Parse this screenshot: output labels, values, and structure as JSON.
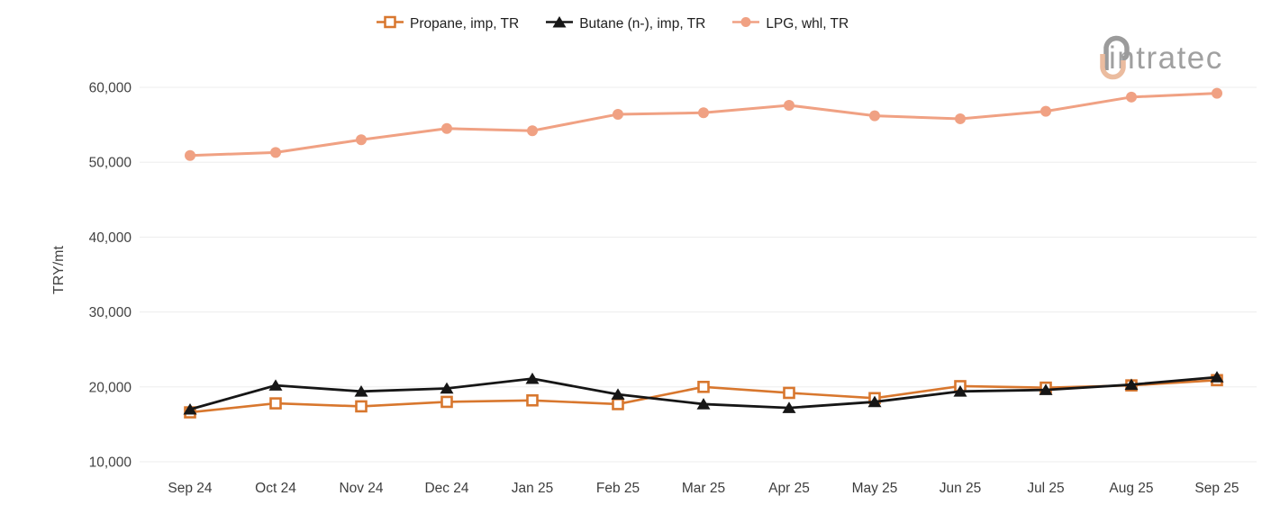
{
  "logo": {
    "text": "intratec",
    "text_color": "#A0A0A0",
    "arc_top_color": "#9B9B9B",
    "arc_bottom_color": "#EBBC9F"
  },
  "chart_data": {
    "type": "line",
    "title": "",
    "xlabel": "",
    "ylabel": "TRY/mt",
    "grid": "horizontal-only",
    "legend_position": "top-center",
    "grid_color": "#EDEDED",
    "tick_label_color": "#424242",
    "ylim": [
      10000,
      62000
    ],
    "yticks": [
      {
        "label": "60,000",
        "value": 60000
      },
      {
        "label": "50,000",
        "value": 50000
      },
      {
        "label": "40,000",
        "value": 40000
      },
      {
        "label": "30,000",
        "value": 30000
      },
      {
        "label": "20,000",
        "value": 20000
      },
      {
        "label": "10,000",
        "value": 10000
      }
    ],
    "x": [
      "Sep 24",
      "Oct 24",
      "Nov 24",
      "Dec 24",
      "Jan 25",
      "Feb 25",
      "Mar 25",
      "Apr 25",
      "May 25",
      "Jun 25",
      "Jul 25",
      "Aug 25",
      "Sep 25"
    ],
    "series": [
      {
        "id": "propane",
        "name": "Propane, imp, TR",
        "marker": "square",
        "color": "#D8772E",
        "marker_fill": "#FFFFFF",
        "values": [
          16600,
          17800,
          17400,
          18000,
          18200,
          17700,
          20000,
          19200,
          18500,
          20100,
          19900,
          20200,
          20900
        ]
      },
      {
        "id": "butane",
        "name": "Butane (n-), imp, TR",
        "marker": "triangle",
        "color": "#161616",
        "marker_fill": "#161616",
        "values": [
          17000,
          20200,
          19400,
          19800,
          21100,
          19000,
          17700,
          17200,
          18000,
          19400,
          19600,
          20300,
          21300
        ]
      },
      {
        "id": "lpg",
        "name": "LPG, whl, TR",
        "marker": "circle",
        "color": "#F0A183",
        "marker_fill": "#F0A183",
        "values": [
          50900,
          51300,
          53000,
          54500,
          54200,
          56400,
          56600,
          57600,
          56200,
          55800,
          56800,
          58700,
          59200
        ]
      }
    ]
  }
}
